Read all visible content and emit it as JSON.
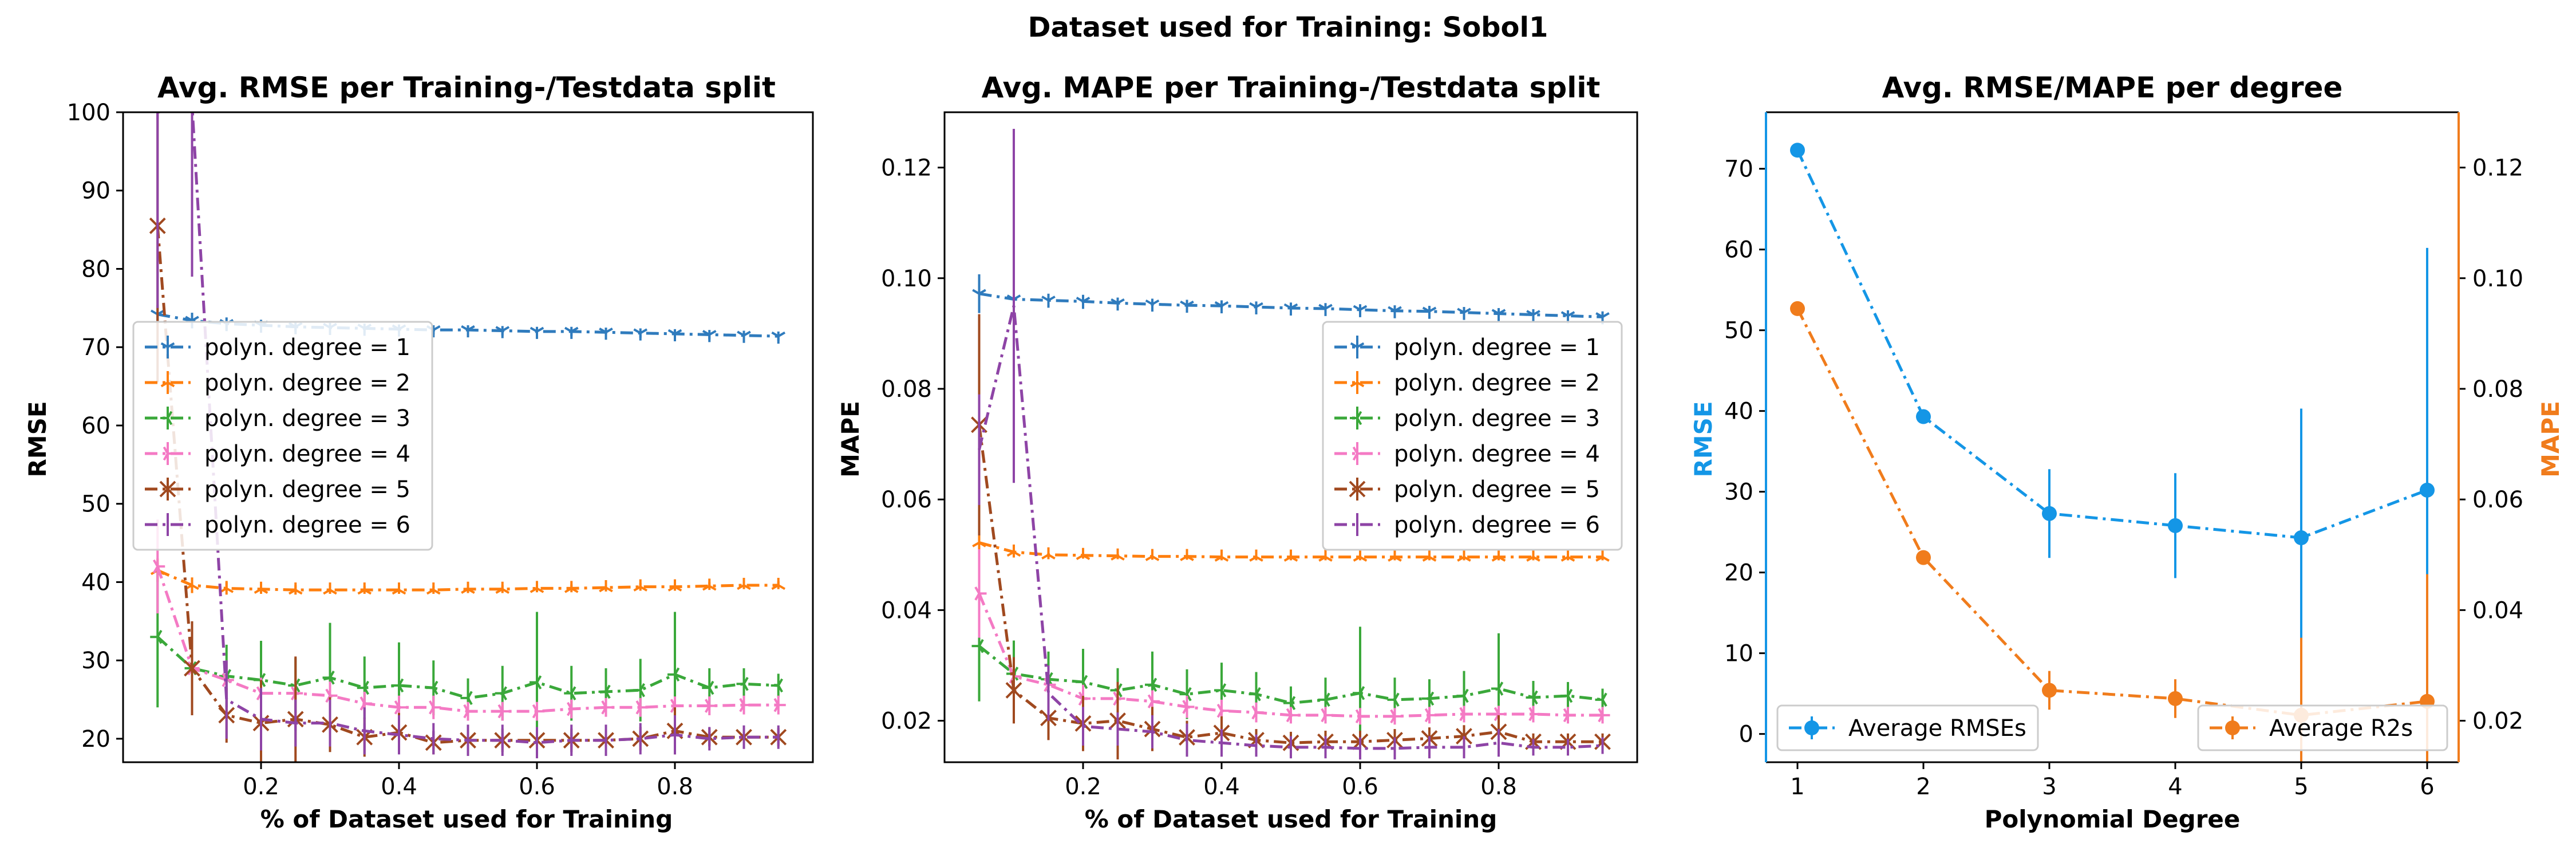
{
  "figure": {
    "suptitle": "Dataset used for Training: Sobol1"
  },
  "colors": {
    "deg1": "#2f7bbd",
    "deg2": "#ff7f0e",
    "deg3": "#3aa83a",
    "deg4": "#f47ac4",
    "deg5": "#a0491f",
    "deg6": "#8e44a6",
    "rmse_axis": "#1496e6",
    "mape_axis": "#f07c1c"
  },
  "chart_data": [
    {
      "type": "line",
      "title": "Avg. RMSE per Training-/Testdata split",
      "xlabel": "% of Dataset used for Training",
      "ylabel": "RMSE",
      "xlim": [
        0.0,
        1.0
      ],
      "ylim": [
        17,
        100
      ],
      "xticks": [
        0.2,
        0.4,
        0.6,
        0.8
      ],
      "xtick_labels": [
        "0.2",
        "0.4",
        "0.6",
        "0.8"
      ],
      "yticks": [
        20,
        30,
        40,
        50,
        60,
        70,
        80,
        90,
        100
      ],
      "legend_position": "center-left",
      "x": [
        0.05,
        0.1,
        0.15,
        0.2,
        0.25,
        0.3,
        0.35,
        0.4,
        0.45,
        0.5,
        0.55,
        0.6,
        0.65,
        0.7,
        0.75,
        0.8,
        0.85,
        0.9,
        0.95
      ],
      "series": [
        {
          "name": "polyn. degree = 1",
          "color_key": "deg1",
          "marker": "1",
          "values": [
            74.2,
            73.4,
            73.0,
            72.8,
            72.6,
            72.5,
            72.4,
            72.3,
            72.2,
            72.2,
            72.1,
            72.0,
            72.0,
            71.9,
            71.8,
            71.7,
            71.6,
            71.5,
            71.4
          ],
          "errors": [
            1.2,
            1.0,
            0.8,
            0.7,
            0.6,
            0.6,
            0.6,
            0.6,
            0.6,
            0.6,
            0.6,
            0.6,
            0.6,
            0.6,
            0.6,
            0.6,
            0.6,
            0.6,
            0.6
          ]
        },
        {
          "name": "polyn. degree = 2",
          "color_key": "deg2",
          "marker": "2",
          "values": [
            41.5,
            39.6,
            39.2,
            39.1,
            39.0,
            39.0,
            39.0,
            39.0,
            39.0,
            39.1,
            39.1,
            39.2,
            39.2,
            39.3,
            39.4,
            39.4,
            39.5,
            39.6,
            39.6
          ],
          "errors": [
            1.5,
            1.0,
            0.8,
            0.6,
            0.6,
            0.5,
            0.5,
            0.5,
            0.5,
            0.5,
            0.5,
            0.5,
            0.5,
            0.5,
            0.5,
            0.5,
            0.5,
            0.5,
            0.5
          ]
        },
        {
          "name": "polyn. degree = 3",
          "color_key": "deg3",
          "marker": "3",
          "values": [
            33.0,
            29.0,
            28.0,
            27.5,
            26.8,
            27.8,
            26.5,
            26.8,
            26.5,
            25.2,
            25.8,
            27.2,
            25.8,
            26.0,
            26.2,
            28.2,
            26.5,
            27.0,
            26.8
          ],
          "errors": [
            9.0,
            5.5,
            4.0,
            5.0,
            3.5,
            7.0,
            4.0,
            5.5,
            3.5,
            2.5,
            3.5,
            9.0,
            3.5,
            3.0,
            4.0,
            8.0,
            2.5,
            2.0,
            1.5
          ]
        },
        {
          "name": "polyn. degree = 4",
          "color_key": "deg4",
          "marker": "4",
          "values": [
            42.0,
            29.0,
            27.5,
            25.8,
            25.8,
            25.5,
            24.5,
            24.0,
            24.0,
            23.5,
            23.5,
            23.5,
            23.8,
            24.0,
            24.0,
            24.2,
            24.2,
            24.3,
            24.3
          ],
          "errors": [
            6.0,
            3.0,
            2.5,
            2.0,
            2.0,
            1.8,
            1.5,
            1.5,
            1.5,
            1.2,
            1.2,
            1.2,
            1.2,
            1.2,
            1.2,
            1.2,
            1.2,
            1.2,
            1.2
          ]
        },
        {
          "name": "polyn. degree = 5",
          "color_key": "deg5",
          "marker": "x",
          "values": [
            85.5,
            29.0,
            23.0,
            22.0,
            22.5,
            21.8,
            20.2,
            20.8,
            19.5,
            19.8,
            19.8,
            19.8,
            19.8,
            19.8,
            20.0,
            21.0,
            20.2,
            20.2,
            20.2
          ],
          "errors": [
            20.0,
            6.0,
            3.5,
            5.5,
            8.0,
            3.5,
            2.5,
            2.5,
            1.5,
            1.5,
            1.5,
            1.5,
            1.5,
            1.5,
            1.5,
            3.0,
            1.2,
            1.2,
            1.2
          ]
        },
        {
          "name": "polyn. degree = 6",
          "color_key": "deg6",
          "marker": "|",
          "values": [
            100,
            101,
            25.0,
            22.5,
            22.0,
            22.0,
            21.0,
            20.5,
            20.0,
            19.8,
            19.8,
            19.5,
            19.8,
            19.8,
            20.0,
            20.5,
            20.0,
            20.2,
            20.2
          ],
          "errors": [
            25.0,
            22.0,
            5.0,
            4.0,
            3.0,
            3.0,
            3.0,
            2.5,
            2.0,
            2.0,
            2.0,
            2.0,
            2.0,
            2.0,
            2.0,
            2.5,
            1.5,
            1.5,
            1.5
          ]
        }
      ]
    },
    {
      "type": "line",
      "title": "Avg. MAPE per Training-/Testdata split",
      "xlabel": "% of Dataset used for Training",
      "ylabel": "MAPE",
      "xlim": [
        0.0,
        1.0
      ],
      "ylim": [
        0.0125,
        0.13
      ],
      "xticks": [
        0.2,
        0.4,
        0.6,
        0.8
      ],
      "xtick_labels": [
        "0.2",
        "0.4",
        "0.6",
        "0.8"
      ],
      "yticks": [
        0.02,
        0.04,
        0.06,
        0.08,
        0.1,
        0.12
      ],
      "ytick_labels": [
        "0.02",
        "0.04",
        "0.06",
        "0.08",
        "0.10",
        "0.12"
      ],
      "legend_position": "center-right",
      "x": [
        0.05,
        0.1,
        0.15,
        0.2,
        0.25,
        0.3,
        0.35,
        0.4,
        0.45,
        0.5,
        0.55,
        0.6,
        0.65,
        0.7,
        0.75,
        0.8,
        0.85,
        0.9,
        0.95
      ],
      "series": [
        {
          "name": "polyn. degree = 1",
          "color_key": "deg1",
          "marker": "1",
          "values": [
            0.0972,
            0.0962,
            0.096,
            0.0958,
            0.0955,
            0.0953,
            0.0951,
            0.095,
            0.0948,
            0.0946,
            0.0945,
            0.0943,
            0.0941,
            0.094,
            0.0938,
            0.0936,
            0.0934,
            0.0932,
            0.093
          ],
          "errors": [
            0.0035,
            0.0015,
            0.0012,
            0.0012,
            0.001,
            0.001,
            0.001,
            0.001,
            0.001,
            0.001,
            0.001,
            0.001,
            0.001,
            0.001,
            0.001,
            0.001,
            0.001,
            0.001,
            0.001
          ]
        },
        {
          "name": "polyn. degree = 2",
          "color_key": "deg2",
          "marker": "2",
          "values": [
            0.0522,
            0.0505,
            0.05,
            0.0499,
            0.0498,
            0.0497,
            0.0497,
            0.0496,
            0.0496,
            0.0496,
            0.0496,
            0.0496,
            0.0496,
            0.0496,
            0.0496,
            0.0496,
            0.0496,
            0.0496,
            0.0496
          ],
          "errors": [
            0.0015,
            0.001,
            0.0008,
            0.0006,
            0.0006,
            0.0006,
            0.0006,
            0.0006,
            0.0006,
            0.0006,
            0.0006,
            0.0006,
            0.0006,
            0.0006,
            0.0006,
            0.0006,
            0.0006,
            0.0006,
            0.0006
          ]
        },
        {
          "name": "polyn. degree = 3",
          "color_key": "deg3",
          "marker": "3",
          "values": [
            0.0335,
            0.0285,
            0.0275,
            0.027,
            0.0255,
            0.0265,
            0.0248,
            0.0255,
            0.0248,
            0.0232,
            0.0238,
            0.025,
            0.0238,
            0.024,
            0.0245,
            0.0258,
            0.0242,
            0.0245,
            0.0238
          ],
          "errors": [
            0.01,
            0.006,
            0.005,
            0.006,
            0.004,
            0.006,
            0.0045,
            0.005,
            0.004,
            0.003,
            0.004,
            0.012,
            0.004,
            0.0035,
            0.0045,
            0.01,
            0.003,
            0.0025,
            0.002
          ]
        },
        {
          "name": "polyn. degree = 4",
          "color_key": "deg4",
          "marker": "4",
          "values": [
            0.043,
            0.028,
            0.0265,
            0.024,
            0.024,
            0.0235,
            0.0225,
            0.0218,
            0.0215,
            0.021,
            0.021,
            0.0208,
            0.0208,
            0.021,
            0.0212,
            0.0212,
            0.0212,
            0.021,
            0.021
          ],
          "errors": [
            0.008,
            0.0035,
            0.003,
            0.0025,
            0.0025,
            0.002,
            0.002,
            0.002,
            0.0018,
            0.0015,
            0.0015,
            0.0015,
            0.0015,
            0.0015,
            0.0015,
            0.0015,
            0.0015,
            0.0015,
            0.0015
          ]
        },
        {
          "name": "polyn. degree = 5",
          "color_key": "deg5",
          "marker": "x",
          "values": [
            0.0735,
            0.0255,
            0.0205,
            0.0195,
            0.02,
            0.0185,
            0.017,
            0.0178,
            0.0165,
            0.016,
            0.0162,
            0.0162,
            0.0165,
            0.0168,
            0.0172,
            0.018,
            0.0162,
            0.0162,
            0.0162
          ],
          "errors": [
            0.02,
            0.006,
            0.004,
            0.005,
            0.007,
            0.004,
            0.003,
            0.003,
            0.002,
            0.002,
            0.002,
            0.002,
            0.002,
            0.002,
            0.002,
            0.003,
            0.0015,
            0.0015,
            0.0015
          ]
        },
        {
          "name": "polyn. degree = 6",
          "color_key": "deg6",
          "marker": "|",
          "values": [
            0.069,
            0.095,
            0.025,
            0.019,
            0.0185,
            0.018,
            0.0165,
            0.016,
            0.0155,
            0.0152,
            0.0152,
            0.015,
            0.015,
            0.0152,
            0.0152,
            0.016,
            0.0152,
            0.0152,
            0.0155
          ],
          "errors": [
            0.01,
            0.032,
            0.005,
            0.0035,
            0.003,
            0.003,
            0.003,
            0.0025,
            0.002,
            0.002,
            0.002,
            0.002,
            0.002,
            0.002,
            0.002,
            0.0025,
            0.0015,
            0.0015,
            0.0015
          ]
        }
      ]
    },
    {
      "type": "line",
      "title": "Avg. RMSE/MAPE per degree",
      "xlabel": "Polynomial Degree",
      "ylabel": "RMSE",
      "ylabel_right": "MAPE",
      "xlim": [
        0.75,
        6.25
      ],
      "ylim": [
        -3.5,
        77
      ],
      "ylim_right": [
        0.0125,
        0.13
      ],
      "x": [
        1,
        2,
        3,
        4,
        5,
        6
      ],
      "xticks": [
        1,
        2,
        3,
        4,
        5,
        6
      ],
      "xtick_labels": [
        "1",
        "2",
        "3",
        "4",
        "5",
        "6"
      ],
      "yticks": [
        0,
        10,
        20,
        30,
        40,
        50,
        60,
        70
      ],
      "yticks_right": [
        0.02,
        0.04,
        0.06,
        0.08,
        0.1,
        0.12
      ],
      "ytick_labels_right": [
        "0.02",
        "0.04",
        "0.06",
        "0.08",
        "0.10",
        "0.12"
      ],
      "series": [
        {
          "name": "Average RMSEs",
          "color_key": "rmse_axis",
          "axis": "left",
          "values": [
            72.3,
            39.3,
            27.3,
            25.8,
            24.3,
            30.2
          ],
          "errors": [
            0.6,
            0.8,
            5.5,
            6.5,
            16.0,
            30.0
          ],
          "legend_position": "lower-left"
        },
        {
          "name": "Average R2s",
          "color_key": "mape_axis",
          "axis": "right",
          "values": [
            0.0945,
            0.0495,
            0.0255,
            0.024,
            0.021,
            0.0235
          ],
          "errors": [
            0.0008,
            0.0006,
            0.0035,
            0.0035,
            0.014,
            0.023
          ],
          "legend_position": "lower-right"
        }
      ]
    }
  ]
}
